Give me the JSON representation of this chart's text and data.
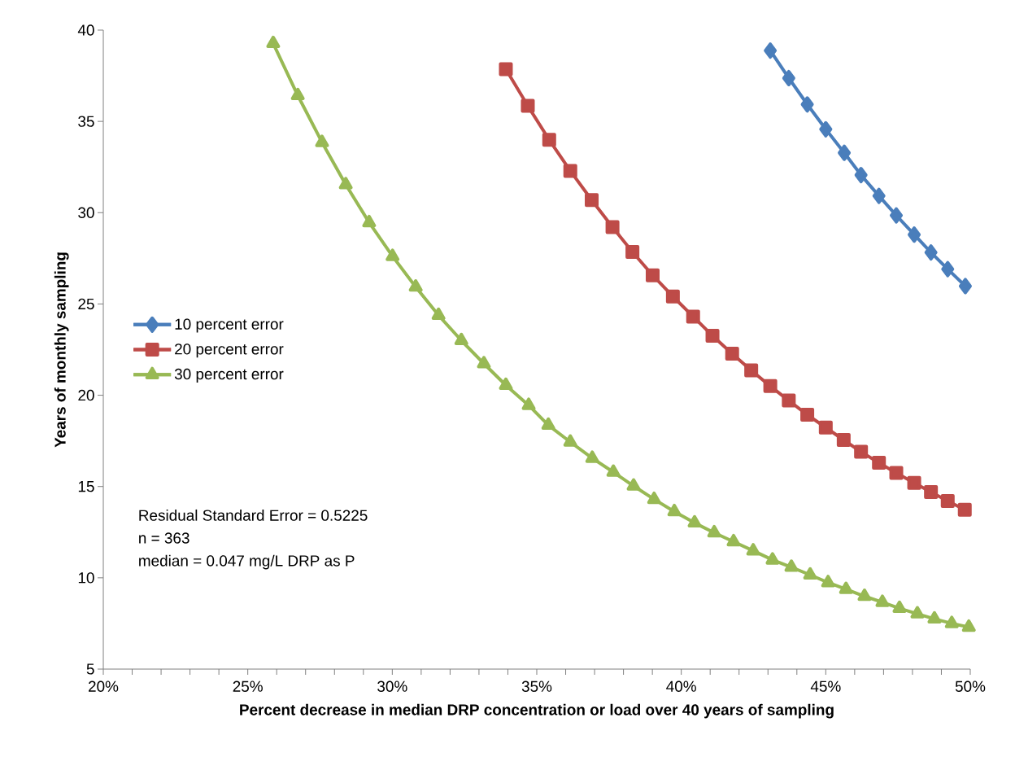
{
  "chart_data": {
    "type": "line",
    "xlabel": "Percent decrease in median DRP concentration or load over 40 years of sampling",
    "ylabel": "Years of monthly sampling",
    "xlim": [
      20,
      50
    ],
    "ylim": [
      5,
      40
    ],
    "xticks": [
      {
        "value": 20,
        "label": "20%"
      },
      {
        "value": 25,
        "label": "25%"
      },
      {
        "value": 30,
        "label": "30%"
      },
      {
        "value": 35,
        "label": "35%"
      },
      {
        "value": 40,
        "label": "40%"
      },
      {
        "value": 45,
        "label": "45%"
      },
      {
        "value": 50,
        "label": "50%"
      }
    ],
    "yticks": [
      5,
      10,
      15,
      20,
      25,
      30,
      35,
      40
    ],
    "grid": false,
    "legend": "left",
    "line_style": "solid",
    "annotations": [
      "Residual Standard Error = 0.5225",
      "n = 363",
      "median = 0.047 mg/L DRP as P"
    ],
    "series": [
      {
        "name": "10 percent error",
        "color": "#4a7ebb",
        "marker": "diamond",
        "x": [
          43.08,
          43.72,
          44.36,
          45.0,
          45.64,
          46.22,
          46.84,
          47.44,
          48.06,
          48.64,
          49.22,
          49.83
        ],
        "values": [
          38.88,
          37.37,
          35.93,
          34.57,
          33.28,
          32.06,
          30.92,
          29.85,
          28.8,
          27.82,
          26.91,
          25.98
        ]
      },
      {
        "name": "20 percent error",
        "color": "#be4b48",
        "marker": "square",
        "x": [
          33.93,
          34.69,
          35.43,
          36.16,
          36.9,
          37.62,
          38.31,
          39.01,
          39.71,
          40.41,
          41.08,
          41.76,
          42.42,
          43.08,
          43.72,
          44.36,
          45.0,
          45.62,
          46.22,
          46.84,
          47.44,
          48.06,
          48.64,
          49.22,
          49.81
        ],
        "values": [
          37.86,
          35.85,
          33.99,
          32.29,
          30.69,
          29.21,
          27.85,
          26.57,
          25.41,
          24.31,
          23.26,
          22.28,
          21.36,
          20.5,
          19.71,
          18.93,
          18.23,
          17.55,
          16.9,
          16.3,
          15.74,
          15.2,
          14.7,
          14.21,
          13.73
        ]
      },
      {
        "name": "30 percent error",
        "color": "#98b954",
        "marker": "triangle",
        "x": [
          25.88,
          26.73,
          27.57,
          28.39,
          29.2,
          30.01,
          30.81,
          31.6,
          32.39,
          33.17,
          33.93,
          34.72,
          35.4,
          36.16,
          36.92,
          37.65,
          38.35,
          39.06,
          39.76,
          40.46,
          41.14,
          41.81,
          42.49,
          43.16,
          43.81,
          44.46,
          45.08,
          45.7,
          46.34,
          46.96,
          47.55,
          48.17,
          48.76,
          49.36,
          49.95
        ],
        "values": [
          39.27,
          36.42,
          33.85,
          31.54,
          29.46,
          27.61,
          25.93,
          24.38,
          23.0,
          21.73,
          20.55,
          19.45,
          18.36,
          17.44,
          16.55,
          15.79,
          15.03,
          14.3,
          13.63,
          13.01,
          12.47,
          11.98,
          11.48,
          10.98,
          10.58,
          10.16,
          9.74,
          9.37,
          8.99,
          8.66,
          8.33,
          8.03,
          7.75,
          7.5,
          7.3
        ]
      }
    ]
  }
}
